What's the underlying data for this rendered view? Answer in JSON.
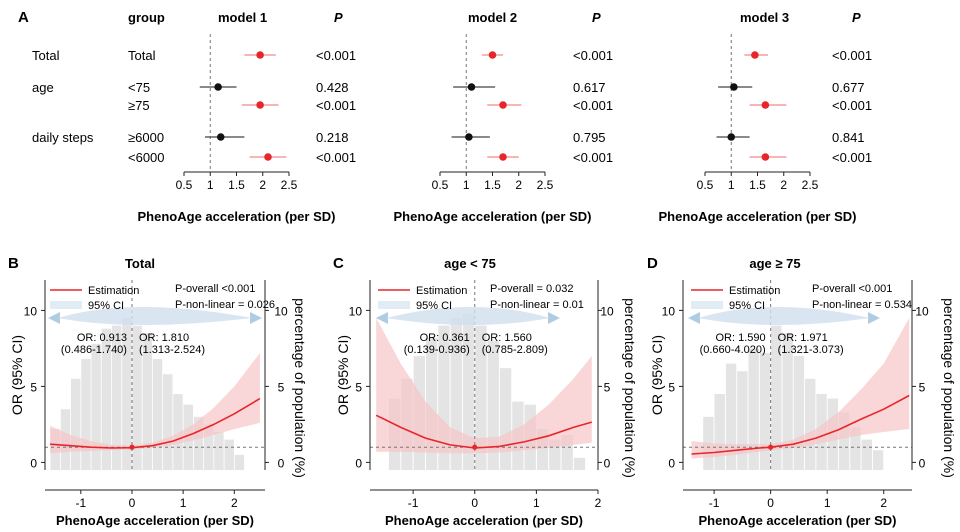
{
  "colors": {
    "red": "#e8262a",
    "black": "#111111",
    "ci_red": "#f7c5c7",
    "ci_blue": "#cfe0ee",
    "bar": "#e4e4e4",
    "arrow": "#aecde4",
    "dash": "#777777"
  },
  "panelA": {
    "letter": "A",
    "group_header": "group",
    "p_header": "P",
    "rows": [
      {
        "group": "Total",
        "sub": "Total"
      },
      {
        "group": "age",
        "sub": "<75"
      },
      {
        "group": "",
        "sub": "≥75"
      },
      {
        "group": "daily steps",
        "sub": "≥6000"
      },
      {
        "group": "",
        "sub": "<6000"
      }
    ]
  },
  "panels": [
    {
      "letter": "B",
      "title": "Total",
      "legend_est": "Estimation",
      "legend_ci": "95% CI",
      "p_overall": "P-overall <0.001",
      "p_nonlinear": "P-non-linear = 0.026",
      "or_left": "OR: 0.913",
      "ci_left": "(0.486-1.740)",
      "or_right": "OR: 1.810",
      "ci_right": "(1.313-2.524)",
      "ylabel_left": "OR (95% CI)",
      "ylabel_right": "percentage of population (%)",
      "xlabel": "PhenoAge acceleration (per SD)"
    },
    {
      "letter": "C",
      "title": "age < 75",
      "legend_est": "Estimation",
      "legend_ci": "95% CI",
      "p_overall": "P-overall = 0.032",
      "p_nonlinear": "P-non-linear = 0.01",
      "or_left": "OR: 0.361",
      "ci_left": "(0.139-0.936)",
      "or_right": "OR: 1.560",
      "ci_right": "(0.785-2.809)",
      "ylabel_left": "OR (95% CI)",
      "ylabel_right": "percentage of population (%)",
      "xlabel": "PhenoAge acceleration (per SD)"
    },
    {
      "letter": "D",
      "title": "age ≥ 75",
      "legend_est": "Estimation",
      "legend_ci": "95% CI",
      "p_overall": "P-overall <0.001",
      "p_nonlinear": "P-non-linear = 0.534",
      "or_left": "OR: 1.590",
      "ci_left": "(0.660-4.020)",
      "or_right": "OR: 1.971",
      "ci_right": "(1.321-3.073)",
      "ylabel_left": "OR (95% CI)",
      "ylabel_right": "percentage of population (%)",
      "xlabel": "PhenoAge acceleration (per SD)"
    }
  ],
  "chart_data": [
    {
      "type": "scatter",
      "panel": "A",
      "subtype": "forest",
      "title": "model 1",
      "xlabel": "PhenoAge acceleration (per SD)",
      "xlim": [
        0.5,
        2.5
      ],
      "x_ticks": [
        "0.5",
        "1",
        "1.5",
        "2",
        "2.5"
      ],
      "reference": 1,
      "estimates": [
        {
          "or": 1.95,
          "lo": 1.65,
          "hi": 2.25,
          "p": "<0.001",
          "color": "red"
        },
        {
          "or": 1.15,
          "lo": 0.8,
          "hi": 1.5,
          "p": "0.428",
          "color": "black"
        },
        {
          "or": 1.95,
          "lo": 1.6,
          "hi": 2.3,
          "p": "<0.001",
          "color": "red"
        },
        {
          "or": 1.2,
          "lo": 0.9,
          "hi": 1.65,
          "p": "0.218",
          "color": "black"
        },
        {
          "or": 2.1,
          "lo": 1.75,
          "hi": 2.45,
          "p": "<0.001",
          "color": "red"
        }
      ]
    },
    {
      "type": "scatter",
      "panel": "A",
      "subtype": "forest",
      "title": "model 2",
      "xlabel": "PhenoAge acceleration (per SD)",
      "xlim": [
        0.5,
        2.5
      ],
      "x_ticks": [
        "0.5",
        "1",
        "1.5",
        "2",
        "2.5"
      ],
      "reference": 1,
      "estimates": [
        {
          "or": 1.5,
          "lo": 1.3,
          "hi": 1.7,
          "p": "<0.001",
          "color": "red"
        },
        {
          "or": 1.1,
          "lo": 0.75,
          "hi": 1.55,
          "p": "0.617",
          "color": "black"
        },
        {
          "or": 1.7,
          "lo": 1.4,
          "hi": 2.05,
          "p": "<0.001",
          "color": "red"
        },
        {
          "or": 1.05,
          "lo": 0.72,
          "hi": 1.45,
          "p": "0.795",
          "color": "black"
        },
        {
          "or": 1.7,
          "lo": 1.4,
          "hi": 2.0,
          "p": "<0.001",
          "color": "red"
        }
      ]
    },
    {
      "type": "scatter",
      "panel": "A",
      "subtype": "forest",
      "title": "model 3",
      "xlabel": "PhenoAge acceleration (per SD)",
      "xlim": [
        0.5,
        2.5
      ],
      "x_ticks": [
        "0.5",
        "1",
        "1.5",
        "2",
        "2.5"
      ],
      "reference": 1,
      "estimates": [
        {
          "or": 1.45,
          "lo": 1.25,
          "hi": 1.7,
          "p": "<0.001",
          "color": "red"
        },
        {
          "or": 1.05,
          "lo": 0.75,
          "hi": 1.4,
          "p": "0.677",
          "color": "black"
        },
        {
          "or": 1.65,
          "lo": 1.35,
          "hi": 2.05,
          "p": "<0.001",
          "color": "red"
        },
        {
          "or": 1.0,
          "lo": 0.72,
          "hi": 1.35,
          "p": "0.841",
          "color": "black"
        },
        {
          "or": 1.65,
          "lo": 1.35,
          "hi": 2.05,
          "p": "<0.001",
          "color": "red"
        }
      ]
    },
    {
      "type": "line",
      "panel": "B",
      "xlim": [
        -1.7,
        2.6
      ],
      "ylim": [
        -0.5,
        12
      ],
      "x_ticks": [
        -1,
        0,
        1,
        2
      ],
      "y_ticks": [
        0,
        5,
        10
      ],
      "y2_ticks": [
        0,
        5,
        10
      ],
      "reference_y": 1,
      "reference_x": 0,
      "curve": {
        "x": [
          -1.6,
          -1.2,
          -0.8,
          -0.4,
          0,
          0.4,
          0.8,
          1.2,
          1.6,
          2.0,
          2.5
        ],
        "y": [
          1.2,
          1.1,
          1.0,
          0.95,
          0.97,
          1.1,
          1.4,
          1.9,
          2.5,
          3.2,
          4.2
        ],
        "lo": [
          0.6,
          0.7,
          0.75,
          0.8,
          0.85,
          0.95,
          1.15,
          1.45,
          1.8,
          2.2,
          2.6
        ],
        "hi": [
          2.4,
          1.8,
          1.4,
          1.15,
          1.1,
          1.3,
          1.75,
          2.5,
          3.6,
          5.0,
          7.2
        ]
      },
      "histogram": {
        "x": [
          -1.5,
          -1.3,
          -1.1,
          -0.9,
          -0.7,
          -0.5,
          -0.3,
          -0.1,
          0.1,
          0.3,
          0.5,
          0.7,
          0.9,
          1.1,
          1.3,
          1.5,
          1.7,
          1.9,
          2.1
        ],
        "pct": [
          2.2,
          3.5,
          5.5,
          6.8,
          7.8,
          8.8,
          9.0,
          9.5,
          9.0,
          8.5,
          6.8,
          5.8,
          4.5,
          3.8,
          3.0,
          2.5,
          2.0,
          1.5,
          0.5
        ]
      }
    },
    {
      "type": "line",
      "panel": "C",
      "xlim": [
        -1.7,
        2.0
      ],
      "ylim": [
        -0.5,
        12
      ],
      "x_ticks": [
        -1,
        0,
        1,
        2
      ],
      "y_ticks": [
        0,
        5,
        10
      ],
      "y2_ticks": [
        0,
        5,
        10
      ],
      "reference_y": 1,
      "reference_x": 0,
      "curve": {
        "x": [
          -1.6,
          -1.2,
          -0.8,
          -0.4,
          0,
          0.4,
          0.8,
          1.2,
          1.6,
          1.9
        ],
        "y": [
          3.1,
          2.3,
          1.6,
          1.15,
          0.95,
          1.05,
          1.35,
          1.75,
          2.3,
          2.65
        ],
        "lo": [
          0.7,
          0.7,
          0.65,
          0.6,
          0.6,
          0.65,
          0.8,
          0.95,
          1.15,
          1.3
        ],
        "hi": [
          9.5,
          6.5,
          4.0,
          2.3,
          1.6,
          1.7,
          2.5,
          3.8,
          5.5,
          7.0
        ]
      },
      "histogram": {
        "x": [
          -1.3,
          -1.1,
          -0.9,
          -0.7,
          -0.5,
          -0.3,
          -0.1,
          0.1,
          0.3,
          0.5,
          0.7,
          0.9,
          1.1,
          1.3,
          1.5,
          1.7
        ],
        "pct": [
          4.2,
          5.5,
          7.0,
          8.2,
          9.0,
          9.5,
          9.8,
          9.0,
          8.0,
          6.2,
          4.0,
          3.8,
          2.2,
          1.5,
          1.8,
          0.3
        ]
      }
    },
    {
      "type": "line",
      "panel": "D",
      "xlim": [
        -1.55,
        2.5
      ],
      "ylim": [
        -0.5,
        12
      ],
      "x_ticks": [
        -1,
        0,
        1,
        2
      ],
      "y_ticks": [
        0,
        5,
        10
      ],
      "y2_ticks": [
        0,
        5,
        10
      ],
      "reference_y": 1,
      "reference_x": 0,
      "curve": {
        "x": [
          -1.4,
          -1.0,
          -0.6,
          -0.2,
          0,
          0.4,
          0.8,
          1.2,
          1.6,
          2.0,
          2.45
        ],
        "y": [
          0.55,
          0.65,
          0.8,
          0.95,
          1.0,
          1.2,
          1.6,
          2.15,
          2.85,
          3.5,
          4.4
        ],
        "lo": [
          0.25,
          0.35,
          0.5,
          0.7,
          0.8,
          0.95,
          1.2,
          1.5,
          1.8,
          2.0,
          2.2
        ],
        "hi": [
          1.4,
          1.25,
          1.2,
          1.2,
          1.2,
          1.5,
          2.2,
          3.3,
          4.8,
          6.5,
          9.5
        ]
      },
      "histogram": {
        "x": [
          -1.1,
          -0.9,
          -0.7,
          -0.5,
          -0.3,
          -0.1,
          0.1,
          0.3,
          0.5,
          0.7,
          0.9,
          1.1,
          1.3,
          1.5,
          1.7,
          1.9
        ],
        "pct": [
          3.0,
          4.5,
          6.5,
          6.0,
          7.5,
          7.2,
          9.0,
          8.5,
          7.0,
          5.5,
          4.5,
          4.2,
          3.3,
          2.3,
          1.5,
          0.8
        ]
      }
    }
  ]
}
